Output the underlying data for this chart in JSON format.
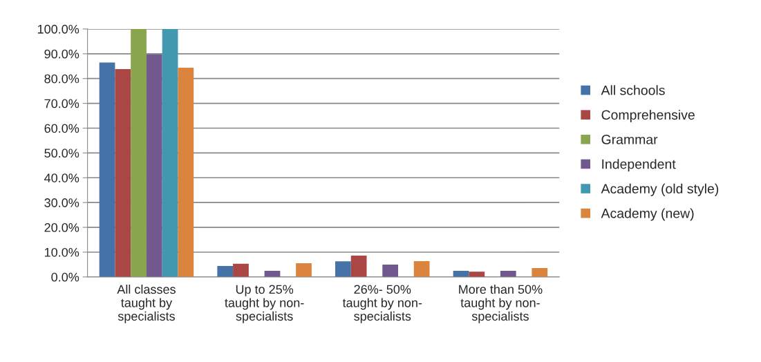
{
  "chart_data": {
    "type": "bar",
    "categories": [
      "All classes\ntaught by\nspecialists",
      "Up to 25%\ntaught by non-\nspecialists",
      "26%- 50%\ntaught by non-\nspecialists",
      "More than 50%\ntaught by non-\nspecialists"
    ],
    "series": [
      {
        "name": "All schools",
        "color": "#4572a7",
        "values": [
          86.5,
          4.4,
          6.3,
          2.5
        ]
      },
      {
        "name": "Comprehensive",
        "color": "#aa4643",
        "values": [
          83.8,
          5.3,
          8.6,
          2.1
        ]
      },
      {
        "name": "Grammar",
        "color": "#89a54e",
        "values": [
          100,
          null,
          null,
          null
        ]
      },
      {
        "name": "Independent",
        "color": "#71588f",
        "values": [
          89.8,
          2.5,
          5.0,
          2.5
        ]
      },
      {
        "name": "Academy (old style)",
        "color": "#4198af",
        "values": [
          100,
          null,
          null,
          null
        ]
      },
      {
        "name": "Academy (new)",
        "color": "#db843d",
        "values": [
          84.4,
          5.5,
          6.4,
          3.6
        ]
      }
    ],
    "ylim": [
      0,
      100
    ],
    "yticks": [
      {
        "value": 0,
        "label": "0.0%"
      },
      {
        "value": 10,
        "label": "10.0%"
      },
      {
        "value": 20,
        "label": "20.0%"
      },
      {
        "value": 30,
        "label": "30.0%"
      },
      {
        "value": 40,
        "label": "40.0%"
      },
      {
        "value": 50,
        "label": "50.0%"
      },
      {
        "value": 60,
        "label": "60.0%"
      },
      {
        "value": 70,
        "label": "70.0%"
      },
      {
        "value": 80,
        "label": "80.0%"
      },
      {
        "value": 90,
        "label": "90.0%"
      },
      {
        "value": 100,
        "label": "100.0%"
      }
    ],
    "grid": "y",
    "legend": "right"
  }
}
